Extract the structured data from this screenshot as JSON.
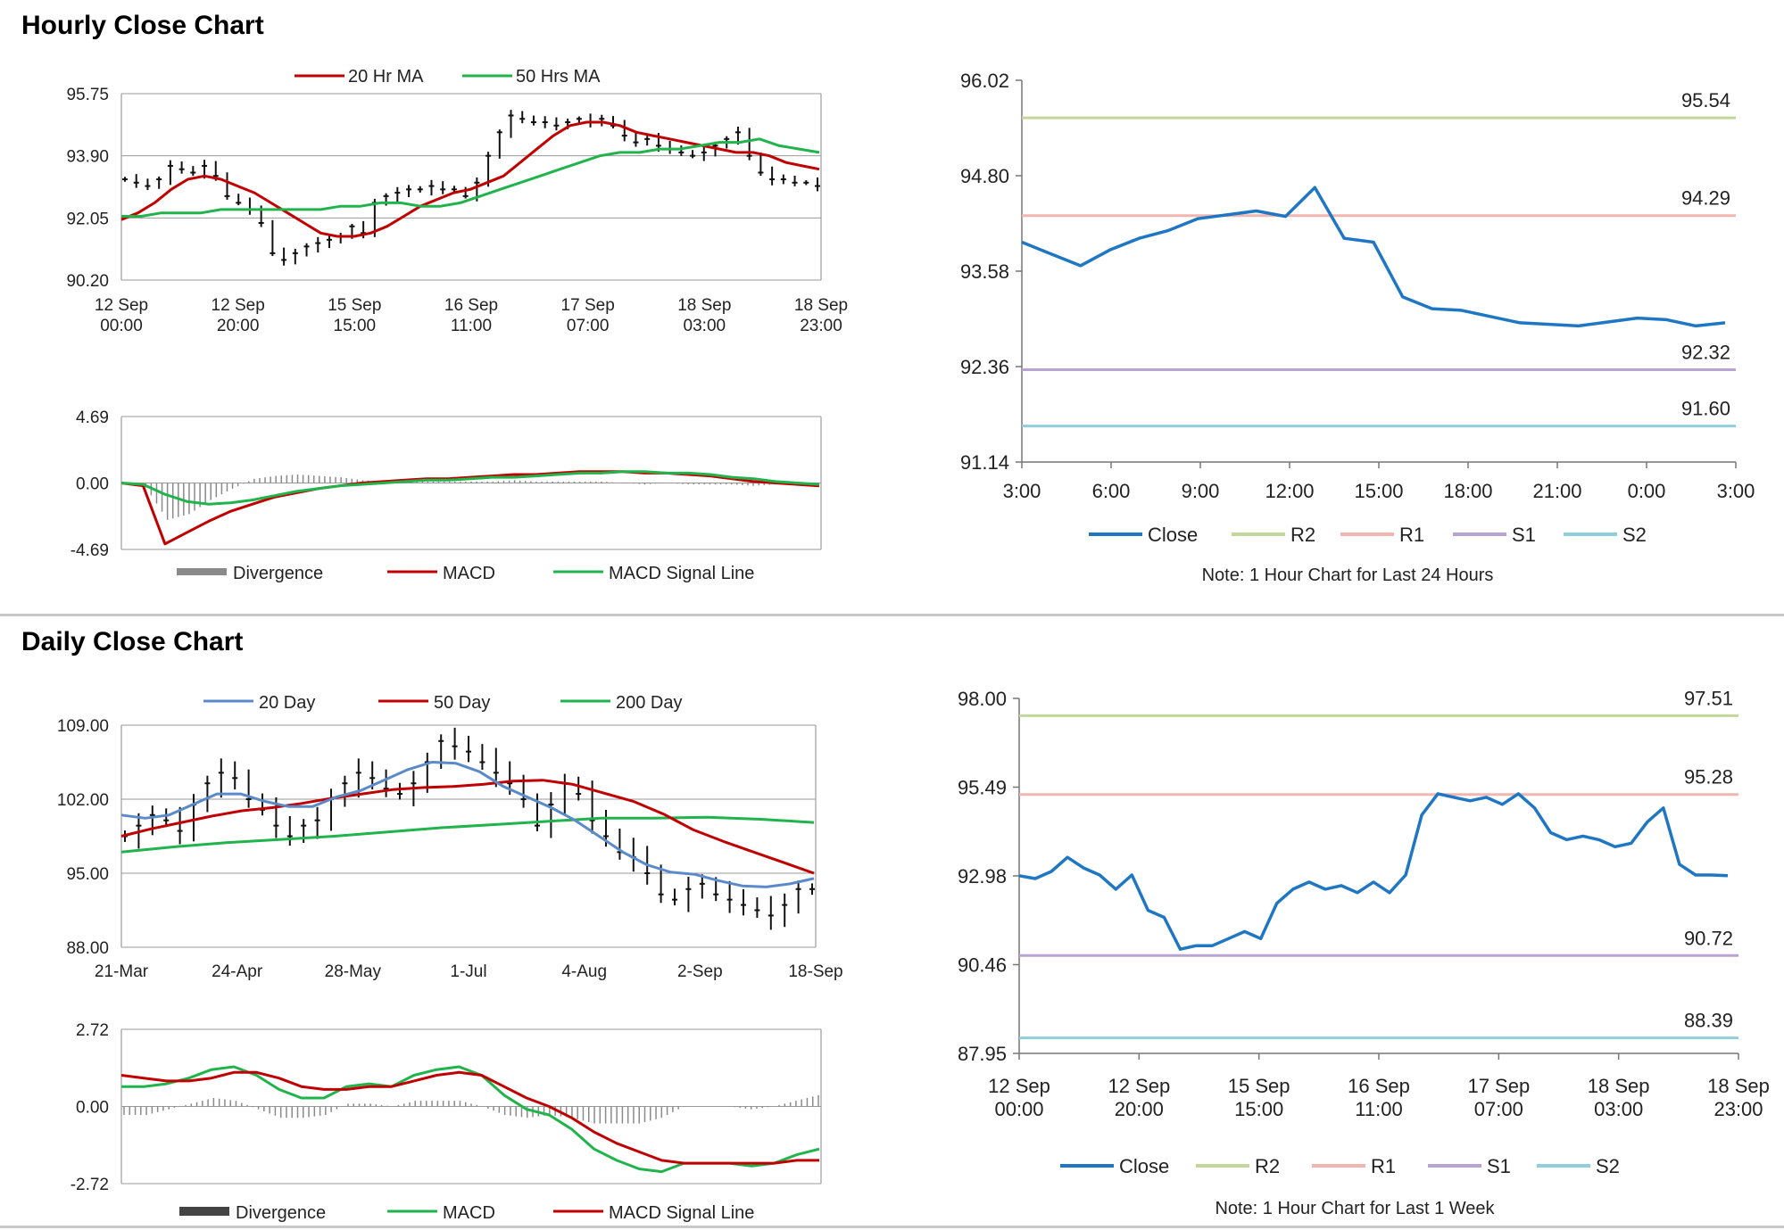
{
  "sections": {
    "hourly_title": "Hourly Close Chart",
    "daily_title": "Daily Close Chart"
  },
  "colors": {
    "red": "#c00000",
    "green": "#21b34c",
    "blue": "#1f77c4",
    "ma20": "#5b8ac9",
    "r2": "#c3d79b",
    "r1": "#f2b5b0",
    "s1": "#b7a3d4",
    "s2": "#92cddc",
    "grey": "#8a8a8a",
    "dark": "#444444"
  },
  "chart_data": [
    {
      "id": "hourly_price",
      "type": "line",
      "ylim": [
        90.2,
        95.75
      ],
      "yticks": [
        "95.75",
        "93.90",
        "92.05",
        "90.20"
      ],
      "xticks": [
        [
          "12 Sep",
          "00:00"
        ],
        [
          "12 Sep",
          "20:00"
        ],
        [
          "15 Sep",
          "15:00"
        ],
        [
          "16 Sep",
          "11:00"
        ],
        [
          "17 Sep",
          "07:00"
        ],
        [
          "18 Sep",
          "03:00"
        ],
        [
          "18 Sep",
          "23:00"
        ]
      ],
      "legend": [
        "20 Hr MA",
        "50 Hrs MA"
      ],
      "series": [
        {
          "name": "Price",
          "values": [
            93.2,
            93.1,
            93.0,
            93.2,
            93.6,
            93.5,
            93.4,
            93.6,
            93.3,
            92.7,
            92.5,
            92.3,
            91.9,
            91.0,
            90.8,
            91.0,
            91.2,
            91.3,
            91.4,
            91.5,
            91.8,
            91.6,
            92.5,
            92.7,
            92.8,
            92.9,
            92.9,
            93.0,
            92.9,
            92.9,
            92.7,
            93.1,
            93.9,
            94.6,
            95.1,
            95.0,
            94.9,
            94.9,
            94.8,
            94.9,
            95.0,
            94.9,
            95.0,
            94.8,
            94.5,
            94.3,
            94.4,
            94.2,
            94.1,
            94.0,
            93.9,
            94.0,
            94.2,
            94.4,
            94.6,
            93.9,
            93.4,
            93.2,
            93.2,
            93.1,
            93.1,
            93.0
          ]
        },
        {
          "name": "20 Hr MA",
          "values": [
            92.0,
            92.2,
            92.5,
            92.9,
            93.2,
            93.3,
            93.2,
            93.0,
            92.8,
            92.5,
            92.2,
            91.9,
            91.6,
            91.5,
            91.5,
            91.6,
            91.8,
            92.1,
            92.4,
            92.6,
            92.8,
            92.9,
            93.1,
            93.3,
            93.7,
            94.1,
            94.5,
            94.8,
            94.9,
            94.9,
            94.8,
            94.6,
            94.5,
            94.4,
            94.3,
            94.2,
            94.1,
            94.0,
            94.0,
            93.9,
            93.7,
            93.6,
            93.5
          ]
        },
        {
          "name": "50 Hrs MA",
          "values": [
            92.1,
            92.1,
            92.2,
            92.2,
            92.2,
            92.3,
            92.3,
            92.3,
            92.3,
            92.3,
            92.3,
            92.4,
            92.4,
            92.5,
            92.5,
            92.4,
            92.4,
            92.5,
            92.7,
            92.9,
            93.1,
            93.3,
            93.5,
            93.7,
            93.9,
            94.0,
            94.0,
            94.1,
            94.1,
            94.2,
            94.3,
            94.3,
            94.4,
            94.2,
            94.1,
            94.0
          ]
        }
      ]
    },
    {
      "id": "hourly_macd",
      "type": "line",
      "ylim": [
        -4.69,
        4.69
      ],
      "yticks": [
        "4.69",
        "0.00",
        "-4.69"
      ],
      "legend": [
        "Divergence",
        "MACD",
        "MACD Signal Line"
      ],
      "series": [
        {
          "name": "MACD",
          "values": [
            0.0,
            -0.2,
            -4.3,
            -3.5,
            -2.7,
            -2.0,
            -1.5,
            -1.0,
            -0.7,
            -0.4,
            -0.2,
            0.0,
            0.1,
            0.2,
            0.3,
            0.3,
            0.4,
            0.5,
            0.6,
            0.6,
            0.7,
            0.8,
            0.8,
            0.8,
            0.7,
            0.7,
            0.6,
            0.5,
            0.3,
            0.1,
            0.0,
            -0.1,
            -0.2
          ]
        },
        {
          "name": "MACD Signal Line",
          "values": [
            0.0,
            -0.1,
            -0.8,
            -1.3,
            -1.5,
            -1.4,
            -1.2,
            -0.9,
            -0.6,
            -0.4,
            -0.2,
            -0.1,
            0.0,
            0.1,
            0.2,
            0.2,
            0.3,
            0.4,
            0.4,
            0.5,
            0.6,
            0.7,
            0.7,
            0.8,
            0.8,
            0.7,
            0.7,
            0.6,
            0.4,
            0.3,
            0.1,
            0.0,
            -0.1
          ]
        },
        {
          "name": "Divergence",
          "values": [
            0.0,
            -0.3,
            -2.6,
            -2.2,
            -1.2,
            -0.4,
            0.3,
            0.5,
            0.6,
            0.5,
            0.4,
            0.2,
            0.1,
            0.1,
            0.1,
            0.1,
            0.1,
            0.1,
            0.2,
            0.1,
            0.1,
            0.1,
            0.1,
            0.0,
            -0.1,
            0.0,
            -0.1,
            -0.1,
            -0.1,
            -0.2,
            -0.1,
            -0.1,
            -0.1
          ]
        }
      ]
    },
    {
      "id": "hourly_levels",
      "type": "line",
      "ylim": [
        91.14,
        96.02
      ],
      "yticks": [
        "96.02",
        "94.80",
        "93.58",
        "92.36",
        "91.14"
      ],
      "xticks": [
        "3:00",
        "6:00",
        "9:00",
        "12:00",
        "15:00",
        "18:00",
        "21:00",
        "0:00",
        "3:00"
      ],
      "legend": [
        "Close",
        "R2",
        "R1",
        "S1",
        "S2"
      ],
      "note": "Note: 1 Hour Chart for Last 24 Hours",
      "levels": [
        {
          "name": "R2",
          "value": 95.54,
          "label": "95.54"
        },
        {
          "name": "R1",
          "value": 94.29,
          "label": "94.29"
        },
        {
          "name": "S1",
          "value": 92.32,
          "label": "92.32"
        },
        {
          "name": "S2",
          "value": 91.6,
          "label": "91.60"
        }
      ],
      "series": [
        {
          "name": "Close",
          "values": [
            93.95,
            93.8,
            93.65,
            93.85,
            94.0,
            94.1,
            94.25,
            94.3,
            94.35,
            94.28,
            94.65,
            94.0,
            93.95,
            93.25,
            93.1,
            93.08,
            93.0,
            92.92,
            92.9,
            92.88,
            92.93,
            92.98,
            92.96,
            92.88,
            92.92
          ]
        }
      ]
    },
    {
      "id": "daily_price",
      "type": "line",
      "ylim": [
        88.0,
        109.0
      ],
      "yticks": [
        "109.00",
        "102.00",
        "95.00",
        "88.00"
      ],
      "xticks": [
        "21-Mar",
        "24-Apr",
        "28-May",
        "1-Jul",
        "4-Aug",
        "2-Sep",
        "18-Sep"
      ],
      "legend": [
        "20 Day",
        "50 Day",
        "200 Day"
      ],
      "series": [
        {
          "name": "Price",
          "values": [
            98.5,
            99.5,
            100.5,
            100.0,
            99.0,
            101.5,
            103.5,
            104.5,
            104.0,
            102.0,
            101.0,
            99.5,
            98.5,
            99.5,
            100.0,
            102.0,
            103.5,
            104.5,
            104.0,
            103.0,
            102.5,
            103.5,
            105.5,
            107.5,
            107.0,
            106.5,
            105.5,
            104.5,
            103.5,
            102.0,
            99.5,
            101.5,
            103.5,
            102.5,
            100.0,
            98.5,
            97.0,
            96.5,
            95.0,
            93.0,
            92.5,
            93.5,
            94.0,
            93.0,
            92.5,
            92.0,
            91.5,
            91.0,
            92.0,
            93.5,
            93.5
          ]
        },
        {
          "name": "20 Day",
          "values": [
            100.5,
            100.2,
            100.5,
            101.5,
            102.5,
            102.5,
            101.8,
            101.3,
            101.3,
            102.2,
            102.8,
            103.8,
            104.8,
            105.5,
            105.4,
            104.6,
            103.2,
            102.2,
            101.2,
            100.0,
            98.5,
            97.0,
            95.8,
            95.1,
            94.9,
            94.3,
            93.8,
            93.7,
            94.0,
            94.5
          ]
        },
        {
          "name": "50 Day",
          "values": [
            98.5,
            99.2,
            99.8,
            100.4,
            100.9,
            101.2,
            101.6,
            102.1,
            102.5,
            102.9,
            103.1,
            103.2,
            103.4,
            103.7,
            103.8,
            103.4,
            102.6,
            101.8,
            100.6,
            99.1,
            98.0,
            97.0,
            96.0,
            95.0
          ]
        },
        {
          "name": "200 Day",
          "values": [
            97.0,
            97.5,
            97.9,
            98.2,
            98.5,
            98.9,
            99.3,
            99.6,
            99.9,
            100.2,
            100.2,
            100.3,
            100.1,
            99.8
          ]
        }
      ]
    },
    {
      "id": "daily_macd",
      "type": "line",
      "ylim": [
        -2.72,
        2.72
      ],
      "yticks": [
        "2.72",
        "0.00",
        "-2.72"
      ],
      "legend": [
        "Divergence",
        "MACD",
        "MACD Signal Line"
      ],
      "series": [
        {
          "name": "MACD",
          "values": [
            0.7,
            0.7,
            0.8,
            1.0,
            1.3,
            1.4,
            1.1,
            0.6,
            0.3,
            0.3,
            0.7,
            0.8,
            0.7,
            1.1,
            1.3,
            1.4,
            1.1,
            0.4,
            -0.1,
            -0.3,
            -0.8,
            -1.5,
            -1.9,
            -2.2,
            -2.3,
            -2.0,
            -2.0,
            -2.0,
            -2.1,
            -2.0,
            -1.7,
            -1.5
          ]
        },
        {
          "name": "MACD Signal Line",
          "values": [
            1.1,
            1.0,
            0.9,
            0.9,
            1.0,
            1.2,
            1.2,
            1.0,
            0.7,
            0.6,
            0.6,
            0.7,
            0.7,
            0.9,
            1.1,
            1.2,
            1.1,
            0.7,
            0.3,
            0.0,
            -0.4,
            -0.9,
            -1.3,
            -1.6,
            -1.9,
            -2.0,
            -2.0,
            -2.0,
            -2.0,
            -2.0,
            -1.9,
            -1.9
          ]
        },
        {
          "name": "Divergence",
          "values": [
            -0.3,
            -0.3,
            -0.1,
            0.1,
            0.3,
            0.2,
            -0.1,
            -0.4,
            -0.4,
            -0.3,
            0.1,
            0.1,
            0.0,
            0.2,
            0.2,
            0.2,
            0.0,
            -0.3,
            -0.4,
            -0.3,
            -0.4,
            -0.6,
            -0.6,
            -0.6,
            -0.4,
            0.0,
            0.0,
            0.0,
            -0.1,
            0.0,
            0.2,
            0.4
          ]
        }
      ]
    },
    {
      "id": "daily_levels",
      "type": "line",
      "ylim": [
        87.95,
        98.0
      ],
      "yticks": [
        "98.00",
        "95.49",
        "92.98",
        "90.46",
        "87.95"
      ],
      "xticks": [
        [
          "12 Sep",
          "00:00"
        ],
        [
          "12 Sep",
          "20:00"
        ],
        [
          "15 Sep",
          "15:00"
        ],
        [
          "16 Sep",
          "11:00"
        ],
        [
          "17 Sep",
          "07:00"
        ],
        [
          "18 Sep",
          "03:00"
        ],
        [
          "18 Sep",
          "23:00"
        ]
      ],
      "legend": [
        "Close",
        "R2",
        "R1",
        "S1",
        "S2"
      ],
      "note": "Note: 1 Hour Chart for Last 1 Week",
      "levels": [
        {
          "name": "R2",
          "value": 97.51,
          "label": "97.51"
        },
        {
          "name": "R1",
          "value": 95.28,
          "label": "95.28"
        },
        {
          "name": "S1",
          "value": 90.72,
          "label": "90.72"
        },
        {
          "name": "S2",
          "value": 88.39,
          "label": "88.39"
        }
      ],
      "series": [
        {
          "name": "Close",
          "values": [
            92.98,
            92.9,
            93.1,
            93.5,
            93.2,
            93.0,
            92.6,
            93.0,
            92.0,
            91.8,
            90.9,
            91.0,
            91.0,
            91.2,
            91.4,
            91.2,
            92.2,
            92.6,
            92.8,
            92.6,
            92.7,
            92.5,
            92.8,
            92.5,
            93.0,
            94.7,
            95.3,
            95.2,
            95.1,
            95.2,
            95.0,
            95.3,
            94.9,
            94.2,
            94.0,
            94.1,
            94.0,
            93.8,
            93.9,
            94.5,
            94.9,
            93.3,
            93.0,
            93.0,
            92.98
          ]
        }
      ]
    }
  ]
}
